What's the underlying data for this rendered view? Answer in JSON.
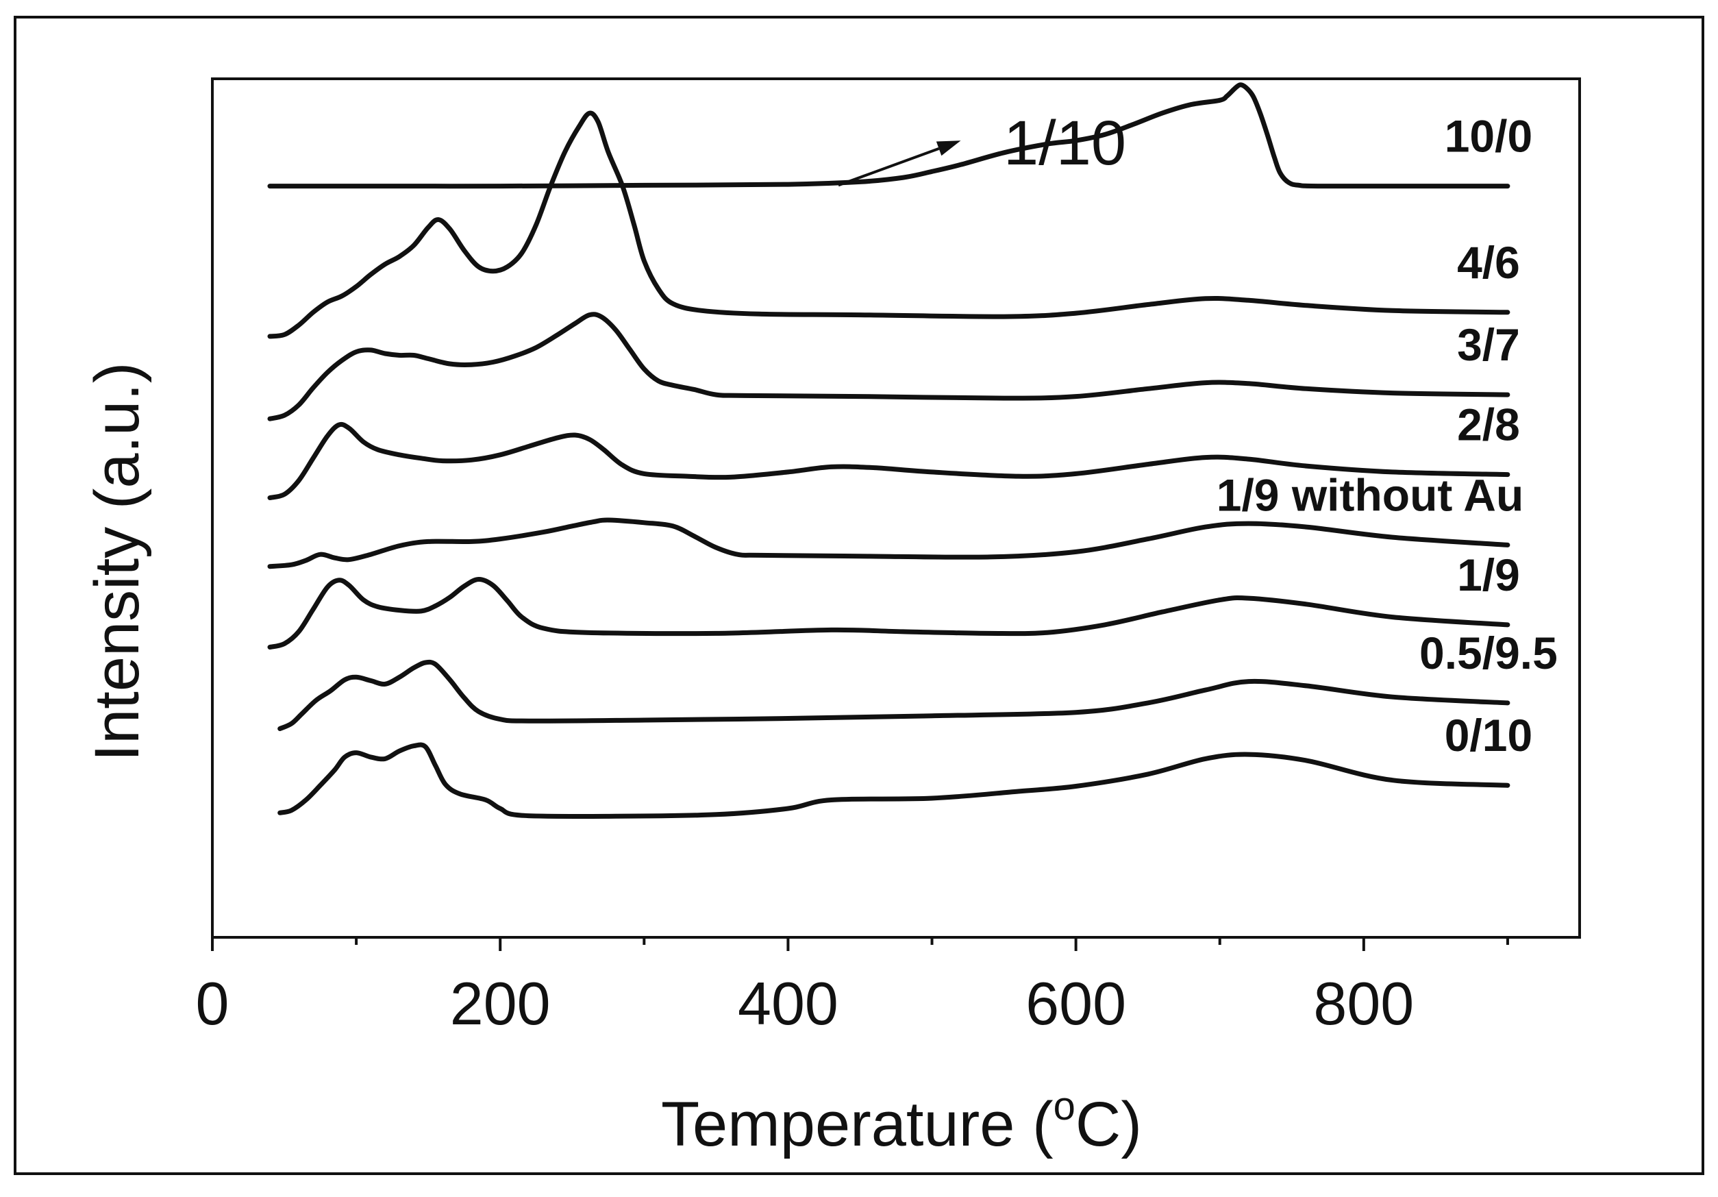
{
  "chart_data": {
    "type": "line",
    "title": "",
    "xlabel_main": "Temperature (",
    "xlabel_sup": "o",
    "xlabel_end": "C)",
    "ylabel": "Intensity (a.u.)",
    "xlim": [
      0,
      950
    ],
    "ylim": [
      0,
      10
    ],
    "x_ticks": [
      0,
      200,
      400,
      600,
      800
    ],
    "x_tick_labels": [
      "0",
      "200",
      "400",
      "600",
      "800"
    ],
    "x_minor_ticks": [
      100,
      300,
      500,
      700,
      900
    ],
    "y_tick_labels_visible": false,
    "series": [
      {
        "name": "10/0",
        "points": [
          [
            40,
            8.75
          ],
          [
            100,
            8.75
          ],
          [
            200,
            8.75
          ],
          [
            300,
            8.76
          ],
          [
            400,
            8.77
          ],
          [
            450,
            8.8
          ],
          [
            480,
            8.85
          ],
          [
            500,
            8.92
          ],
          [
            520,
            9.0
          ],
          [
            550,
            9.14
          ],
          [
            580,
            9.24
          ],
          [
            600,
            9.28
          ],
          [
            620,
            9.35
          ],
          [
            640,
            9.47
          ],
          [
            660,
            9.6
          ],
          [
            680,
            9.7
          ],
          [
            700,
            9.75
          ],
          [
            705,
            9.8
          ],
          [
            710,
            9.88
          ],
          [
            714,
            9.93
          ],
          [
            718,
            9.9
          ],
          [
            723,
            9.8
          ],
          [
            728,
            9.6
          ],
          [
            733,
            9.35
          ],
          [
            738,
            9.08
          ],
          [
            742,
            8.9
          ],
          [
            748,
            8.79
          ],
          [
            755,
            8.76
          ],
          [
            770,
            8.75
          ],
          [
            850,
            8.75
          ],
          [
            900,
            8.75
          ]
        ]
      },
      {
        "name": "4/6",
        "points": [
          [
            40,
            7.0
          ],
          [
            50,
            7.02
          ],
          [
            60,
            7.13
          ],
          [
            70,
            7.28
          ],
          [
            80,
            7.4
          ],
          [
            90,
            7.47
          ],
          [
            100,
            7.58
          ],
          [
            110,
            7.72
          ],
          [
            120,
            7.84
          ],
          [
            130,
            7.93
          ],
          [
            140,
            8.06
          ],
          [
            150,
            8.27
          ],
          [
            157,
            8.36
          ],
          [
            165,
            8.25
          ],
          [
            175,
            8.0
          ],
          [
            185,
            7.81
          ],
          [
            195,
            7.76
          ],
          [
            205,
            7.81
          ],
          [
            215,
            7.97
          ],
          [
            225,
            8.3
          ],
          [
            235,
            8.75
          ],
          [
            245,
            9.15
          ],
          [
            255,
            9.45
          ],
          [
            262,
            9.6
          ],
          [
            268,
            9.5
          ],
          [
            275,
            9.15
          ],
          [
            285,
            8.75
          ],
          [
            293,
            8.3
          ],
          [
            300,
            7.88
          ],
          [
            310,
            7.55
          ],
          [
            320,
            7.38
          ],
          [
            340,
            7.3
          ],
          [
            380,
            7.26
          ],
          [
            450,
            7.25
          ],
          [
            550,
            7.23
          ],
          [
            600,
            7.27
          ],
          [
            650,
            7.37
          ],
          [
            690,
            7.44
          ],
          [
            720,
            7.42
          ],
          [
            760,
            7.36
          ],
          [
            820,
            7.3
          ],
          [
            900,
            7.28
          ]
        ]
      },
      {
        "name": "3/7",
        "points": [
          [
            40,
            6.04
          ],
          [
            50,
            6.08
          ],
          [
            60,
            6.2
          ],
          [
            70,
            6.4
          ],
          [
            80,
            6.58
          ],
          [
            90,
            6.72
          ],
          [
            100,
            6.82
          ],
          [
            110,
            6.84
          ],
          [
            120,
            6.8
          ],
          [
            130,
            6.78
          ],
          [
            140,
            6.78
          ],
          [
            150,
            6.74
          ],
          [
            165,
            6.68
          ],
          [
            180,
            6.67
          ],
          [
            195,
            6.7
          ],
          [
            210,
            6.77
          ],
          [
            225,
            6.87
          ],
          [
            240,
            7.02
          ],
          [
            252,
            7.15
          ],
          [
            262,
            7.25
          ],
          [
            270,
            7.23
          ],
          [
            280,
            7.08
          ],
          [
            290,
            6.85
          ],
          [
            300,
            6.62
          ],
          [
            310,
            6.48
          ],
          [
            320,
            6.43
          ],
          [
            335,
            6.38
          ],
          [
            350,
            6.32
          ],
          [
            370,
            6.31
          ],
          [
            450,
            6.3
          ],
          [
            550,
            6.28
          ],
          [
            600,
            6.3
          ],
          [
            650,
            6.39
          ],
          [
            690,
            6.46
          ],
          [
            720,
            6.45
          ],
          [
            760,
            6.39
          ],
          [
            820,
            6.34
          ],
          [
            900,
            6.32
          ]
        ]
      },
      {
        "name": "2/8",
        "points": [
          [
            40,
            5.12
          ],
          [
            50,
            5.16
          ],
          [
            60,
            5.32
          ],
          [
            70,
            5.58
          ],
          [
            80,
            5.84
          ],
          [
            88,
            5.97
          ],
          [
            95,
            5.93
          ],
          [
            105,
            5.77
          ],
          [
            115,
            5.68
          ],
          [
            130,
            5.62
          ],
          [
            145,
            5.58
          ],
          [
            160,
            5.55
          ],
          [
            180,
            5.56
          ],
          [
            200,
            5.62
          ],
          [
            220,
            5.72
          ],
          [
            240,
            5.82
          ],
          [
            252,
            5.85
          ],
          [
            262,
            5.8
          ],
          [
            272,
            5.68
          ],
          [
            285,
            5.5
          ],
          [
            300,
            5.4
          ],
          [
            330,
            5.37
          ],
          [
            360,
            5.36
          ],
          [
            400,
            5.42
          ],
          [
            430,
            5.48
          ],
          [
            460,
            5.47
          ],
          [
            500,
            5.42
          ],
          [
            560,
            5.37
          ],
          [
            600,
            5.4
          ],
          [
            650,
            5.51
          ],
          [
            690,
            5.59
          ],
          [
            720,
            5.57
          ],
          [
            760,
            5.49
          ],
          [
            820,
            5.42
          ],
          [
            900,
            5.39
          ]
        ]
      },
      {
        "name": "1/9 without Au",
        "points": [
          [
            40,
            4.32
          ],
          [
            55,
            4.34
          ],
          [
            65,
            4.39
          ],
          [
            75,
            4.46
          ],
          [
            85,
            4.42
          ],
          [
            95,
            4.4
          ],
          [
            110,
            4.46
          ],
          [
            130,
            4.56
          ],
          [
            150,
            4.61
          ],
          [
            180,
            4.61
          ],
          [
            200,
            4.64
          ],
          [
            230,
            4.72
          ],
          [
            250,
            4.79
          ],
          [
            265,
            4.84
          ],
          [
            275,
            4.86
          ],
          [
            300,
            4.83
          ],
          [
            320,
            4.79
          ],
          [
            335,
            4.67
          ],
          [
            350,
            4.54
          ],
          [
            365,
            4.46
          ],
          [
            380,
            4.45
          ],
          [
            450,
            4.44
          ],
          [
            540,
            4.43
          ],
          [
            600,
            4.49
          ],
          [
            650,
            4.64
          ],
          [
            690,
            4.78
          ],
          [
            720,
            4.82
          ],
          [
            760,
            4.78
          ],
          [
            820,
            4.66
          ],
          [
            900,
            4.57
          ]
        ]
      },
      {
        "name": "1/9",
        "points": [
          [
            40,
            3.38
          ],
          [
            50,
            3.42
          ],
          [
            60,
            3.56
          ],
          [
            70,
            3.82
          ],
          [
            80,
            4.08
          ],
          [
            88,
            4.16
          ],
          [
            95,
            4.1
          ],
          [
            105,
            3.93
          ],
          [
            115,
            3.85
          ],
          [
            130,
            3.81
          ],
          [
            145,
            3.8
          ],
          [
            155,
            3.86
          ],
          [
            165,
            3.96
          ],
          [
            175,
            4.09
          ],
          [
            185,
            4.17
          ],
          [
            195,
            4.1
          ],
          [
            205,
            3.92
          ],
          [
            215,
            3.73
          ],
          [
            230,
            3.6
          ],
          [
            260,
            3.55
          ],
          [
            350,
            3.54
          ],
          [
            430,
            3.58
          ],
          [
            480,
            3.56
          ],
          [
            540,
            3.54
          ],
          [
            580,
            3.55
          ],
          [
            620,
            3.64
          ],
          [
            660,
            3.79
          ],
          [
            700,
            3.93
          ],
          [
            720,
            3.95
          ],
          [
            760,
            3.88
          ],
          [
            820,
            3.73
          ],
          [
            900,
            3.64
          ]
        ]
      },
      {
        "name": "0.5/9.5",
        "points": [
          [
            47,
            2.43
          ],
          [
            55,
            2.49
          ],
          [
            62,
            2.6
          ],
          [
            72,
            2.76
          ],
          [
            82,
            2.87
          ],
          [
            92,
            3.0
          ],
          [
            100,
            3.03
          ],
          [
            110,
            2.99
          ],
          [
            120,
            2.95
          ],
          [
            130,
            3.03
          ],
          [
            140,
            3.14
          ],
          [
            148,
            3.2
          ],
          [
            155,
            3.18
          ],
          [
            165,
            3.0
          ],
          [
            175,
            2.79
          ],
          [
            185,
            2.63
          ],
          [
            200,
            2.54
          ],
          [
            220,
            2.52
          ],
          [
            300,
            2.53
          ],
          [
            400,
            2.55
          ],
          [
            500,
            2.58
          ],
          [
            600,
            2.62
          ],
          [
            650,
            2.73
          ],
          [
            690,
            2.88
          ],
          [
            720,
            2.98
          ],
          [
            760,
            2.93
          ],
          [
            820,
            2.8
          ],
          [
            900,
            2.73
          ]
        ]
      },
      {
        "name": "0/10",
        "points": [
          [
            47,
            1.45
          ],
          [
            55,
            1.48
          ],
          [
            65,
            1.6
          ],
          [
            75,
            1.77
          ],
          [
            85,
            1.95
          ],
          [
            92,
            2.1
          ],
          [
            100,
            2.15
          ],
          [
            110,
            2.1
          ],
          [
            120,
            2.08
          ],
          [
            130,
            2.17
          ],
          [
            140,
            2.23
          ],
          [
            148,
            2.22
          ],
          [
            155,
            2.0
          ],
          [
            162,
            1.78
          ],
          [
            172,
            1.67
          ],
          [
            190,
            1.6
          ],
          [
            200,
            1.5
          ],
          [
            215,
            1.42
          ],
          [
            280,
            1.41
          ],
          [
            350,
            1.43
          ],
          [
            400,
            1.5
          ],
          [
            430,
            1.6
          ],
          [
            500,
            1.62
          ],
          [
            560,
            1.7
          ],
          [
            600,
            1.76
          ],
          [
            650,
            1.9
          ],
          [
            690,
            2.08
          ],
          [
            720,
            2.13
          ],
          [
            760,
            2.06
          ],
          [
            820,
            1.83
          ],
          [
            900,
            1.77
          ]
        ]
      }
    ],
    "series_labels": [
      "10/0",
      "4/6",
      "3/7",
      "2/8",
      "1/9 without Au",
      "1/9",
      "0.5/9.5",
      "0/10"
    ],
    "annotation": {
      "text": "1/10",
      "arrow_from": [
        435,
        8.76
      ],
      "arrow_to": [
        520,
        9.28
      ]
    }
  }
}
